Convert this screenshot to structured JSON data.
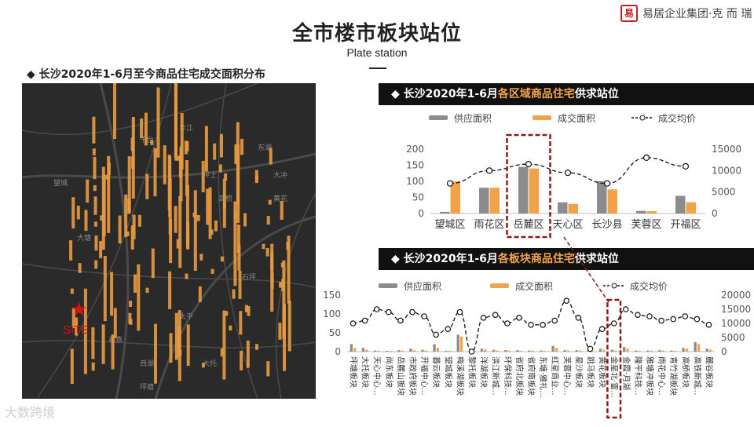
{
  "header": {
    "title": "全市楼市板块站位",
    "subtitle": "Plate station"
  },
  "logo": {
    "mark": "易",
    "text": "易居企业集团·克 而 瑞"
  },
  "map": {
    "title": "◆  长沙2020年1-6月至今商品住宅成交面积分布",
    "site_label": "SITE",
    "watermark": "大数跨境",
    "place_names": [
      "望城",
      "坪塘",
      "大托",
      "千台",
      "丰江",
      "东湖",
      "黄花",
      "高桥",
      "坪上",
      "大冲",
      "石坪",
      "石燕",
      "西湖",
      "大塘",
      "太平"
    ]
  },
  "colors": {
    "supply": "#8c8c8c",
    "deal": "#f2a349",
    "price_line": "#111111",
    "map_bars": "#e69a40",
    "highlight_box": "#8b1a1a",
    "accent": "#f5a44a"
  },
  "charts": {
    "district": {
      "band_prefix": "◆  长沙2020年1-6月",
      "band_highlight": "各区域商品住宅",
      "band_suffix": "供求站位"
    },
    "block": {
      "band_prefix": "◆  长沙2020年1-6月",
      "band_highlight": "各板块商品住宅",
      "band_suffix": "供求站位"
    }
  },
  "chart_data": [
    {
      "type": "bar",
      "categories": [
        "望城区",
        "雨花区",
        "岳麓区",
        "天心区",
        "长沙县",
        "芙蓉区",
        "开福区"
      ],
      "series": [
        {
          "name": "供应面积",
          "values": [
            5,
            80,
            145,
            35,
            100,
            8,
            55
          ]
        },
        {
          "name": "成交面积",
          "values": [
            100,
            80,
            140,
            30,
            75,
            7,
            35
          ]
        },
        {
          "name": "成交均价",
          "type": "line",
          "axis": "right",
          "values": [
            7000,
            10000,
            11500,
            9500,
            7000,
            13000,
            11000
          ]
        }
      ],
      "legend": [
        "供应面积",
        "成交面积",
        "成交均价"
      ],
      "ylim": [
        0,
        200
      ],
      "yticks": [
        0,
        50,
        100,
        150,
        200
      ],
      "y2lim": [
        0,
        15000
      ],
      "y2ticks": [
        0,
        5000,
        10000,
        15000
      ],
      "highlight_category": "岳麓区"
    },
    {
      "type": "bar",
      "categories": [
        "坪塘板块",
        "大托板块",
        "天心中心...",
        "尚东板块",
        "岳麓山板块",
        "市政府板块",
        "开福中心...",
        "暮云板块",
        "望城板块",
        "梅溪湖板块",
        "黎托板块",
        "洋湖板块",
        "滨江新城...",
        "环保科技...",
        "省府北板块",
        "省府南板块",
        "东塘·雅礼...",
        "红星商业...",
        "芙蓉中心...",
        "星沙板块",
        "跳马板块",
        "黄花板块",
        "金星北·雷...",
        "金霞·月湖",
        "隆平科技...",
        "雅塘冲板块",
        "雨花中心...",
        "青竹湖板块",
        "高桥板块",
        "高铁新城...",
        "麓谷板块"
      ],
      "series": [
        {
          "name": "供应面积",
          "values": [
            20,
            10,
            3,
            2,
            4,
            8,
            5,
            20,
            2,
            45,
            3,
            8,
            5,
            4,
            4,
            3,
            3,
            15,
            4,
            4,
            3,
            8,
            5,
            12,
            3,
            3,
            4,
            3,
            10,
            25,
            8
          ]
        },
        {
          "name": "成交面积",
          "values": [
            10,
            5,
            2,
            2,
            3,
            4,
            3,
            10,
            2,
            40,
            2,
            6,
            3,
            3,
            2,
            3,
            2,
            10,
            3,
            3,
            2,
            5,
            3,
            8,
            2,
            2,
            3,
            2,
            8,
            20,
            5
          ]
        },
        {
          "name": "成交均价",
          "type": "line",
          "axis": "right",
          "values": [
            10000,
            11000,
            15000,
            14000,
            11000,
            14000,
            12500,
            6000,
            8000,
            14000,
            0,
            12000,
            13000,
            10000,
            12000,
            9500,
            9500,
            11000,
            18000,
            12000,
            1000,
            8000,
            10000,
            15000,
            13000,
            12500,
            11000,
            11500,
            12500,
            11500,
            9500
          ]
        }
      ],
      "legend": [
        "供应面积",
        "成交面积",
        "成交均价"
      ],
      "ylim": [
        0,
        150
      ],
      "yticks": [
        0,
        50,
        100,
        150
      ],
      "y2lim": [
        0,
        20000
      ],
      "y2ticks": [
        0,
        5000,
        10000,
        15000,
        20000
      ],
      "highlight_category": "金星北·雷..."
    }
  ]
}
